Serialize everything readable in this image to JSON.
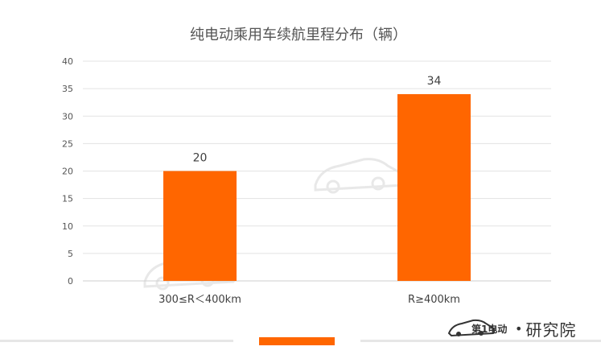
{
  "colors": {
    "bar": "#ff6600",
    "grid": "#e3e3e3",
    "accent": "#ff6600"
  },
  "chart_data": {
    "type": "bar",
    "title": "纯电动乘用车续航里程分布（辆）",
    "categories": [
      "300≤R＜400km",
      "R≥400km"
    ],
    "values": [
      20,
      34
    ],
    "data_labels": [
      "20",
      "34"
    ],
    "yticks": [
      "0",
      "5",
      "10",
      "15",
      "20",
      "25",
      "30",
      "35",
      "40"
    ],
    "ylim": [
      0,
      40
    ],
    "grid": true,
    "legend": "none",
    "xlabel": "",
    "ylabel": ""
  },
  "brand": {
    "logo_icon": "car-logo-icon",
    "text": "研究院",
    "logo_text": "第1电动"
  }
}
